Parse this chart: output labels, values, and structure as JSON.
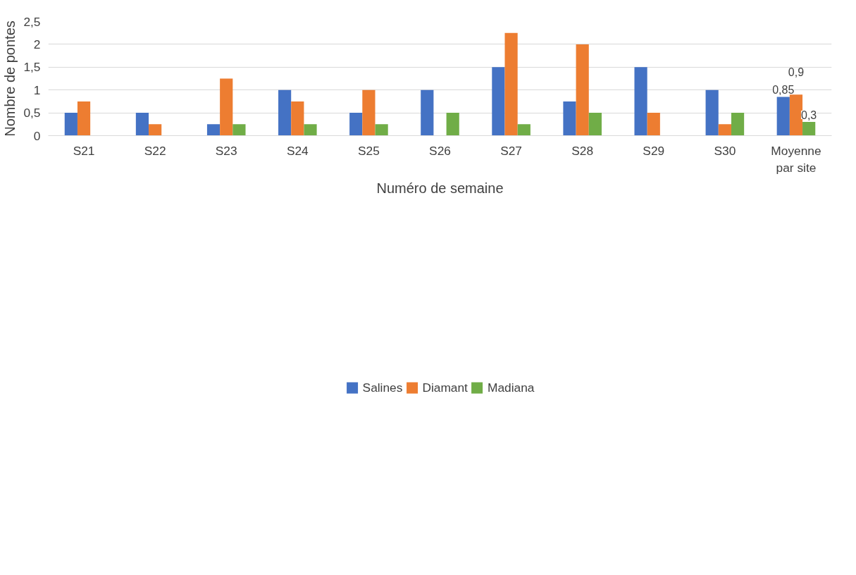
{
  "chart_data": {
    "type": "bar",
    "xlabel": "Numéro de semaine",
    "ylabel": "Nombre de pontes",
    "categories": [
      "S21",
      "S22",
      "S23",
      "S24",
      "S25",
      "S26",
      "S27",
      "S28",
      "S29",
      "S30",
      "Moyenne par site"
    ],
    "series": [
      {
        "name": "Salines",
        "color": "#4472c4",
        "values": [
          0.5,
          0.5,
          0.25,
          1,
          0.5,
          1,
          1.5,
          0.75,
          1.5,
          1,
          0.85
        ],
        "value_labels": [
          null,
          null,
          null,
          null,
          null,
          null,
          null,
          null,
          null,
          null,
          "0,85"
        ]
      },
      {
        "name": "Diamant",
        "color": "#ed7d31",
        "values": [
          0.75,
          0.25,
          1.25,
          0.75,
          1,
          0,
          2.25,
          2,
          0.5,
          0.25,
          0.9
        ],
        "value_labels": [
          null,
          null,
          null,
          null,
          null,
          null,
          null,
          null,
          null,
          null,
          "0,9"
        ]
      },
      {
        "name": "Madiana",
        "color": "#70ad47",
        "values": [
          0,
          0,
          0.25,
          0.25,
          0.25,
          0.5,
          0.25,
          0.5,
          0,
          0.5,
          0.3
        ],
        "value_labels": [
          null,
          null,
          null,
          null,
          null,
          null,
          null,
          null,
          null,
          null,
          "0,3"
        ]
      }
    ],
    "ylim": [
      0,
      2.5
    ],
    "yticks": [
      0,
      {
        "value": 0.5,
        "label": "0,5"
      },
      1,
      {
        "value": 1.5,
        "label": "1,5"
      },
      2,
      {
        "value": 2.5,
        "label": "2,5"
      }
    ],
    "grid": "y",
    "legend": "bottom"
  }
}
